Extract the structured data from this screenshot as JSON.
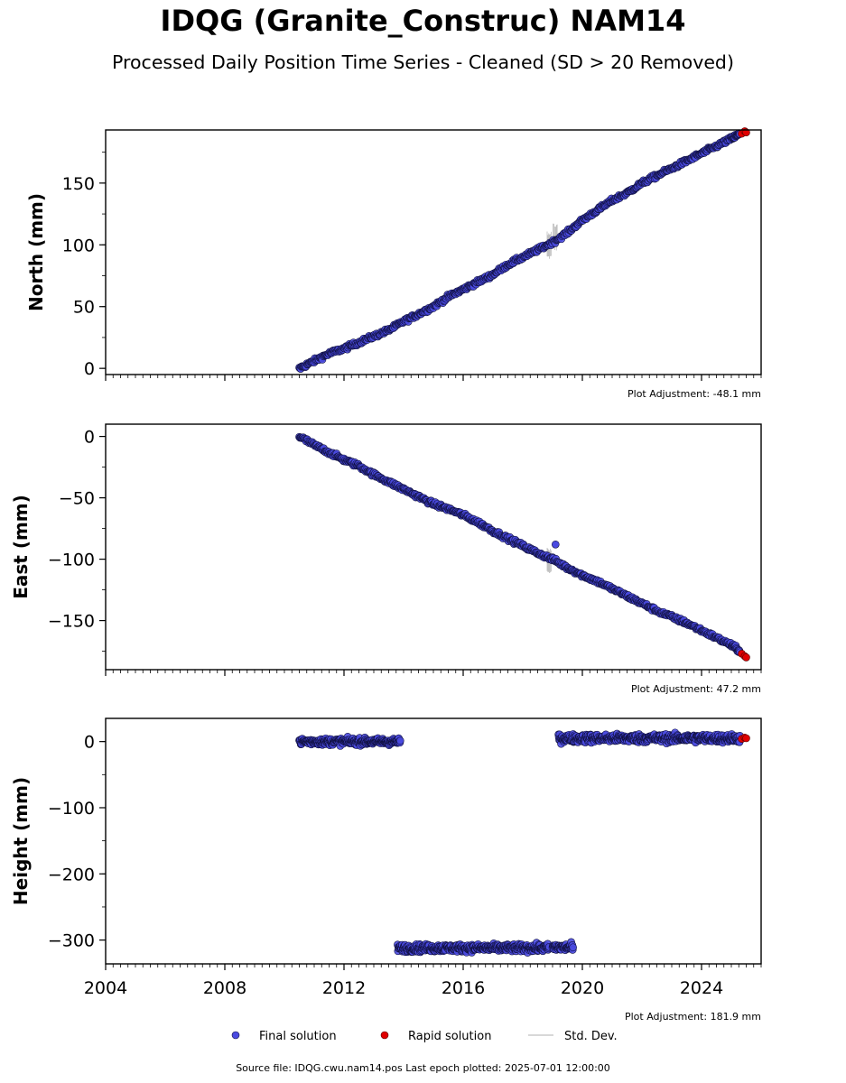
{
  "header": {
    "title": "IDQG (Granite_Construc) NAM14",
    "subtitle": "Processed Daily Position Time Series - Cleaned (SD > 20 Removed)"
  },
  "footer": {
    "source_text": "Source file: IDQG.cwu.nam14.pos  Last epoch plotted: 2025-07-01 12:00:00"
  },
  "legend": {
    "placement": "bottom-center",
    "items": [
      {
        "label": "Final solution",
        "color": "#4a4ae0"
      },
      {
        "label": "Rapid solution",
        "color": "#e00000"
      },
      {
        "label": "Std. Dev.",
        "color": "#cccccc"
      }
    ]
  },
  "chart_data": [
    {
      "type": "scatter",
      "ylabel": "North (mm)",
      "xlim": [
        2004,
        2026
      ],
      "ylim": [
        -5,
        193
      ],
      "y_ticks": [
        0,
        50,
        100,
        150
      ],
      "adjustment": "Plot Adjustment: -48.1 mm",
      "series": [
        {
          "name": "Final solution",
          "x": [
            2010.5,
            2011.0,
            2011.5,
            2012.0,
            2012.5,
            2013.0,
            2013.5,
            2014.0,
            2014.5,
            2015.0,
            2015.5,
            2016.0,
            2016.5,
            2017.0,
            2017.5,
            2018.0,
            2018.5,
            2019.0,
            2019.5,
            2020.0,
            2020.5,
            2021.0,
            2021.5,
            2022.0,
            2022.5,
            2023.0,
            2023.5,
            2024.0,
            2024.5,
            2025.0,
            2025.3
          ],
          "y": [
            0,
            6,
            12,
            16,
            21,
            26,
            31,
            38,
            44,
            50,
            58,
            64,
            70,
            76,
            84,
            90,
            96,
            102,
            110,
            120,
            128,
            136,
            142,
            150,
            156,
            162,
            168,
            174,
            180,
            186,
            190
          ]
        },
        {
          "name": "Rapid solution",
          "x": [
            2025.35,
            2025.45,
            2025.5
          ],
          "y": [
            190,
            192,
            191
          ]
        }
      ],
      "std_dev_spikes": [
        {
          "x": 2018.9,
          "low": 88,
          "high": 112
        },
        {
          "x": 2019.1,
          "low": 95,
          "high": 118
        }
      ]
    },
    {
      "type": "scatter",
      "ylabel": "East (mm)",
      "xlim": [
        2004,
        2026
      ],
      "ylim": [
        -190,
        10
      ],
      "y_ticks": [
        0,
        -50,
        -100,
        -150
      ],
      "adjustment": "Plot Adjustment: 47.2 mm",
      "series": [
        {
          "name": "Final solution",
          "x": [
            2010.5,
            2011.0,
            2011.5,
            2012.0,
            2012.5,
            2013.0,
            2013.5,
            2014.0,
            2014.5,
            2015.0,
            2015.5,
            2016.0,
            2016.5,
            2017.0,
            2017.5,
            2018.0,
            2018.5,
            2019.0,
            2019.5,
            2020.0,
            2020.5,
            2021.0,
            2021.5,
            2022.0,
            2022.5,
            2023.0,
            2023.5,
            2024.0,
            2024.5,
            2025.0,
            2025.3
          ],
          "y": [
            0,
            -7,
            -13,
            -19,
            -24,
            -31,
            -37,
            -43,
            -49,
            -55,
            -59,
            -64,
            -70,
            -77,
            -83,
            -89,
            -95,
            -100,
            -107,
            -113,
            -118,
            -124,
            -130,
            -136,
            -142,
            -147,
            -152,
            -158,
            -164,
            -170,
            -175
          ]
        },
        {
          "name": "Rapid solution",
          "x": [
            2025.35,
            2025.45,
            2025.5
          ],
          "y": [
            -177,
            -179,
            -180
          ]
        }
      ],
      "std_dev_spikes": [
        {
          "x": 2018.9,
          "low": -112,
          "high": -90
        }
      ]
    },
    {
      "type": "scatter",
      "ylabel": "Height (mm)",
      "xlabel": "",
      "xlim": [
        2004,
        2026
      ],
      "ylim": [
        -336,
        35
      ],
      "y_ticks": [
        0,
        -100,
        -200,
        -300
      ],
      "x_ticks": [
        2004,
        2008,
        2012,
        2016,
        2020,
        2024
      ],
      "adjustment": "Plot Adjustment: 181.9 mm",
      "series": [
        {
          "name": "Final solution",
          "segments": [
            {
              "x_start": 2010.5,
              "x_end": 2013.9,
              "mean": 0,
              "spread": 8
            },
            {
              "x_start": 2013.8,
              "x_end": 2018.9,
              "mean": -312,
              "spread": 9
            },
            {
              "x_start": 2019.0,
              "x_end": 2019.7,
              "mean": -311,
              "spread": 9
            },
            {
              "x_start": 2019.2,
              "x_end": 2025.3,
              "mean": 5,
              "spread": 10
            }
          ]
        },
        {
          "name": "Rapid solution",
          "x": [
            2025.35,
            2025.45,
            2025.5
          ],
          "y": [
            4,
            6,
            5
          ]
        }
      ]
    }
  ]
}
